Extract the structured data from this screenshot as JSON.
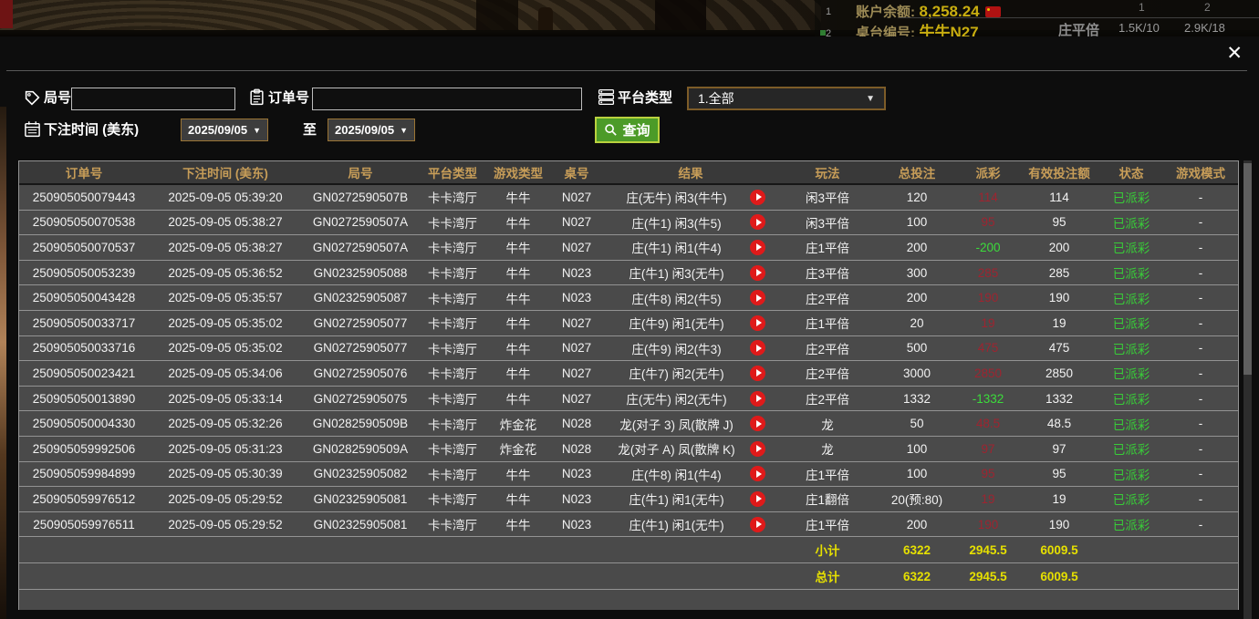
{
  "top_bar": {
    "row_index_1": "1",
    "row_index_2": "2",
    "balance_label": "账户余额:",
    "balance_value": "8,258.24",
    "table_label": "桌台编号:",
    "table_value": "牛牛N27",
    "bet_type": "庄平倍",
    "limit_col_1": "1",
    "limit_col_2": "2",
    "limit_1": "1.5K/10",
    "limit_2": "2.9K/18"
  },
  "modal": {
    "close_label": "✕",
    "filters": {
      "round_label": "局号",
      "round_value": "",
      "order_label": "订单号",
      "order_value": "",
      "platform_label": "平台类型",
      "platform_value": "1.全部",
      "time_label": "下注时间 (美东)",
      "date_from": "2025/09/05",
      "date_to": "2025/09/05",
      "to_label": "至",
      "query_label": "查询",
      "dropdown_arrow": "▼"
    },
    "table": {
      "headers": [
        "订单号",
        "下注时间 (美东)",
        "局号",
        "平台类型",
        "游戏类型",
        "桌号",
        "结果",
        "玩法",
        "总投注",
        "派彩",
        "有效投注额",
        "状态",
        "游戏模式"
      ],
      "rows": [
        {
          "order_id": "250905050079443",
          "bet_time": "2025-09-05 05:39:20",
          "round_id": "GN0272590507B",
          "platform": "卡卡湾厅",
          "game_type": "牛牛",
          "table_no": "N027",
          "result": "庄(无牛) 闲3(牛牛)",
          "play": "闲3平倍",
          "total_bet": "120",
          "payout": "114",
          "payout_type": "win",
          "valid_bet": "114",
          "status": "已派彩",
          "game_mode": "-"
        },
        {
          "order_id": "250905050070538",
          "bet_time": "2025-09-05 05:38:27",
          "round_id": "GN0272590507A",
          "platform": "卡卡湾厅",
          "game_type": "牛牛",
          "table_no": "N027",
          "result": "庄(牛1) 闲3(牛5)",
          "play": "闲3平倍",
          "total_bet": "100",
          "payout": "95",
          "payout_type": "win",
          "valid_bet": "95",
          "status": "已派彩",
          "game_mode": "-"
        },
        {
          "order_id": "250905050070537",
          "bet_time": "2025-09-05 05:38:27",
          "round_id": "GN0272590507A",
          "platform": "卡卡湾厅",
          "game_type": "牛牛",
          "table_no": "N027",
          "result": "庄(牛1) 闲1(牛4)",
          "play": "庄1平倍",
          "total_bet": "200",
          "payout": "-200",
          "payout_type": "loss",
          "valid_bet": "200",
          "status": "已派彩",
          "game_mode": "-"
        },
        {
          "order_id": "250905050053239",
          "bet_time": "2025-09-05 05:36:52",
          "round_id": "GN02325905088",
          "platform": "卡卡湾厅",
          "game_type": "牛牛",
          "table_no": "N023",
          "result": "庄(牛1) 闲3(无牛)",
          "play": "庄3平倍",
          "total_bet": "300",
          "payout": "285",
          "payout_type": "win",
          "valid_bet": "285",
          "status": "已派彩",
          "game_mode": "-"
        },
        {
          "order_id": "250905050043428",
          "bet_time": "2025-09-05 05:35:57",
          "round_id": "GN02325905087",
          "platform": "卡卡湾厅",
          "game_type": "牛牛",
          "table_no": "N023",
          "result": "庄(牛8) 闲2(牛5)",
          "play": "庄2平倍",
          "total_bet": "200",
          "payout": "190",
          "payout_type": "win",
          "valid_bet": "190",
          "status": "已派彩",
          "game_mode": "-"
        },
        {
          "order_id": "250905050033717",
          "bet_time": "2025-09-05 05:35:02",
          "round_id": "GN02725905077",
          "platform": "卡卡湾厅",
          "game_type": "牛牛",
          "table_no": "N027",
          "result": "庄(牛9) 闲1(无牛)",
          "play": "庄1平倍",
          "total_bet": "20",
          "payout": "19",
          "payout_type": "win",
          "valid_bet": "19",
          "status": "已派彩",
          "game_mode": "-"
        },
        {
          "order_id": "250905050033716",
          "bet_time": "2025-09-05 05:35:02",
          "round_id": "GN02725905077",
          "platform": "卡卡湾厅",
          "game_type": "牛牛",
          "table_no": "N027",
          "result": "庄(牛9) 闲2(牛3)",
          "play": "庄2平倍",
          "total_bet": "500",
          "payout": "475",
          "payout_type": "win",
          "valid_bet": "475",
          "status": "已派彩",
          "game_mode": "-"
        },
        {
          "order_id": "250905050023421",
          "bet_time": "2025-09-05 05:34:06",
          "round_id": "GN02725905076",
          "platform": "卡卡湾厅",
          "game_type": "牛牛",
          "table_no": "N027",
          "result": "庄(牛7) 闲2(无牛)",
          "play": "庄2平倍",
          "total_bet": "3000",
          "payout": "2850",
          "payout_type": "win",
          "valid_bet": "2850",
          "status": "已派彩",
          "game_mode": "-"
        },
        {
          "order_id": "250905050013890",
          "bet_time": "2025-09-05 05:33:14",
          "round_id": "GN02725905075",
          "platform": "卡卡湾厅",
          "game_type": "牛牛",
          "table_no": "N027",
          "result": "庄(无牛) 闲2(无牛)",
          "play": "庄2平倍",
          "total_bet": "1332",
          "payout": "-1332",
          "payout_type": "loss",
          "valid_bet": "1332",
          "status": "已派彩",
          "game_mode": "-"
        },
        {
          "order_id": "250905050004330",
          "bet_time": "2025-09-05 05:32:26",
          "round_id": "GN0282590509B",
          "platform": "卡卡湾厅",
          "game_type": "炸金花",
          "table_no": "N028",
          "result": "龙(对子 3) 凤(散牌 J)",
          "play": "龙",
          "total_bet": "50",
          "payout": "48.5",
          "payout_type": "win",
          "valid_bet": "48.5",
          "status": "已派彩",
          "game_mode": "-"
        },
        {
          "order_id": "250905059992506",
          "bet_time": "2025-09-05 05:31:23",
          "round_id": "GN0282590509A",
          "platform": "卡卡湾厅",
          "game_type": "炸金花",
          "table_no": "N028",
          "result": "龙(对子 A) 凤(散牌 K)",
          "play": "龙",
          "total_bet": "100",
          "payout": "97",
          "payout_type": "win",
          "valid_bet": "97",
          "status": "已派彩",
          "game_mode": "-"
        },
        {
          "order_id": "250905059984899",
          "bet_time": "2025-09-05 05:30:39",
          "round_id": "GN02325905082",
          "platform": "卡卡湾厅",
          "game_type": "牛牛",
          "table_no": "N023",
          "result": "庄(牛8) 闲1(牛4)",
          "play": "庄1平倍",
          "total_bet": "100",
          "payout": "95",
          "payout_type": "win",
          "valid_bet": "95",
          "status": "已派彩",
          "game_mode": "-"
        },
        {
          "order_id": "250905059976512",
          "bet_time": "2025-09-05 05:29:52",
          "round_id": "GN02325905081",
          "platform": "卡卡湾厅",
          "game_type": "牛牛",
          "table_no": "N023",
          "result": "庄(牛1) 闲1(无牛)",
          "play": "庄1翻倍",
          "total_bet": "20(预:80)",
          "payout": "19",
          "payout_type": "win",
          "valid_bet": "19",
          "status": "已派彩",
          "game_mode": "-"
        },
        {
          "order_id": "250905059976511",
          "bet_time": "2025-09-05 05:29:52",
          "round_id": "GN02325905081",
          "platform": "卡卡湾厅",
          "game_type": "牛牛",
          "table_no": "N023",
          "result": "庄(牛1) 闲1(无牛)",
          "play": "庄1平倍",
          "total_bet": "200",
          "payout": "190",
          "payout_type": "win",
          "valid_bet": "190",
          "status": "已派彩",
          "game_mode": "-"
        }
      ],
      "subtotal": {
        "label": "小计",
        "total_bet": "6322",
        "payout": "2945.5",
        "valid_bet": "6009.5"
      },
      "total": {
        "label": "总计",
        "total_bet": "6322",
        "payout": "2945.5",
        "valid_bet": "6009.5"
      }
    },
    "colors": {
      "win_red": "#9e2430",
      "loss_green": "#3bdc3b",
      "status_green": "#38cd38",
      "totals_yellow": "#e6e000",
      "header_gold": "#c79d58",
      "query_button_green": "#4c9b28"
    }
  }
}
